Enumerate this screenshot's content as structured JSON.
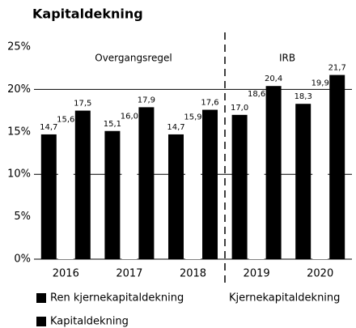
{
  "chart_data": {
    "type": "bar",
    "title": "Kapitaldekning",
    "categories": [
      "2016",
      "2017",
      "2018",
      "2019",
      "2020"
    ],
    "series": [
      {
        "name": "Ren kjernekapitaldekning",
        "color": "#000000",
        "values": [
          14.7,
          15.1,
          14.7,
          17.0,
          18.3
        ],
        "value_labels": [
          "14,7",
          "15,1",
          "14,7",
          "17,0",
          "18,3"
        ]
      },
      {
        "name": "Kjernekapitaldekning",
        "color": "#ffffff",
        "values": [
          15.6,
          16.0,
          15.9,
          18.6,
          19.9
        ],
        "value_labels": [
          "15,6",
          "16,0",
          "15,9",
          "18,6",
          "19,9"
        ]
      },
      {
        "name": "Kapitaldekning",
        "color": "#000000",
        "values": [
          17.5,
          17.9,
          17.6,
          20.4,
          21.7
        ],
        "value_labels": [
          "17,5",
          "17,9",
          "17,6",
          "20,4",
          "21,7"
        ]
      }
    ],
    "annotations": [
      "Overgangsregel",
      "IRB"
    ],
    "ylim": [
      0,
      25
    ],
    "yticks": [
      {
        "value": 0,
        "label": "0%"
      },
      {
        "value": 5,
        "label": "5%"
      },
      {
        "value": 10,
        "label": "10%"
      },
      {
        "value": 15,
        "label": "15%"
      },
      {
        "value": 20,
        "label": "20%"
      },
      {
        "value": 25,
        "label": "25%"
      }
    ],
    "grid_lines": [
      10,
      20
    ]
  }
}
